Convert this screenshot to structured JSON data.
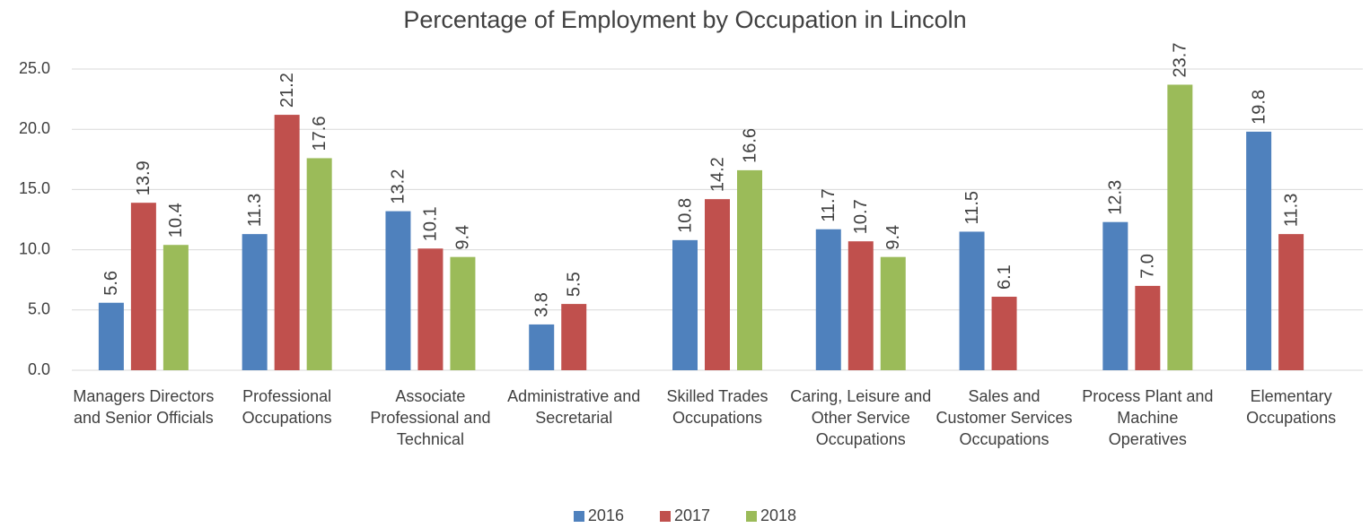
{
  "chart_data": {
    "type": "bar",
    "title": "Percentage of Employment by Occupation in Lincoln",
    "categories": [
      "Managers Directors and Senior Officials",
      "Professional Occupations",
      "Associate Professional and Technical",
      "Administrative and Secretarial",
      "Skilled Trades Occupations",
      "Caring, Leisure and Other Service Occupations",
      "Sales and Customer Services Occupations",
      "Process Plant and Machine Operatives",
      "Elementary Occupations"
    ],
    "series": [
      {
        "name": "2016",
        "color": "#4f81bd",
        "values": [
          5.6,
          11.3,
          13.2,
          3.8,
          10.8,
          11.7,
          11.5,
          12.3,
          19.8
        ],
        "value_labels": [
          "5.6",
          "11.3",
          "13.2",
          "3.8",
          "10.8",
          "11.7",
          "11.5",
          "12.3",
          "19.8"
        ]
      },
      {
        "name": "2017",
        "color": "#c0504d",
        "values": [
          13.9,
          21.2,
          10.1,
          5.5,
          14.2,
          10.7,
          6.1,
          7.0,
          11.3
        ],
        "value_labels": [
          "13.9",
          "21.2",
          "10.1",
          "5.5",
          "14.2",
          "10.7",
          "6.1",
          "7.0",
          "11.3"
        ]
      },
      {
        "name": "2018",
        "color": "#9bbb59",
        "values": [
          10.4,
          17.6,
          9.4,
          null,
          16.6,
          9.4,
          null,
          23.7,
          null
        ],
        "value_labels": [
          "10.4",
          "17.6",
          "9.4",
          null,
          "16.6",
          "9.4",
          null,
          "23.7",
          null
        ]
      }
    ],
    "ylim": [
      0,
      25
    ],
    "yticks": [
      {
        "value": 0,
        "label": "0.0"
      },
      {
        "value": 5,
        "label": "5.0"
      },
      {
        "value": 10,
        "label": "10.0"
      },
      {
        "value": 15,
        "label": "15.0"
      },
      {
        "value": 20,
        "label": "20.0"
      },
      {
        "value": 25,
        "label": "25.0"
      }
    ],
    "grid": true,
    "legend": "bottom"
  }
}
